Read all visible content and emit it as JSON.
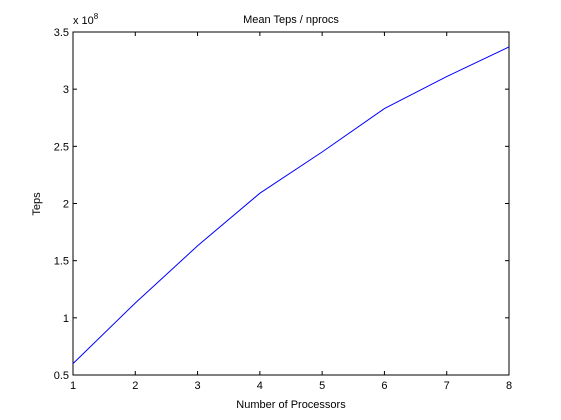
{
  "chart_data": {
    "type": "line",
    "title": "Mean Teps / nprocs",
    "xlabel": "Number of Processors",
    "ylabel": "Teps",
    "exponent_prefix": "x 10",
    "exponent_power": "8",
    "xlim": [
      1,
      8
    ],
    "ylim": [
      0.5,
      3.5
    ],
    "xticks": [
      "1",
      "2",
      "3",
      "4",
      "5",
      "6",
      "7",
      "8"
    ],
    "yticks": [
      "0.5",
      "1",
      "1.5",
      "2",
      "2.5",
      "3",
      "3.5"
    ],
    "grid": false,
    "legend": "none",
    "line_color": "#0000ff",
    "series": [
      {
        "x": [
          1,
          2,
          3,
          4,
          5,
          6,
          7,
          8
        ],
        "values": [
          0.6,
          1.13,
          1.63,
          2.09,
          2.45,
          2.83,
          3.11,
          3.37
        ]
      }
    ]
  }
}
